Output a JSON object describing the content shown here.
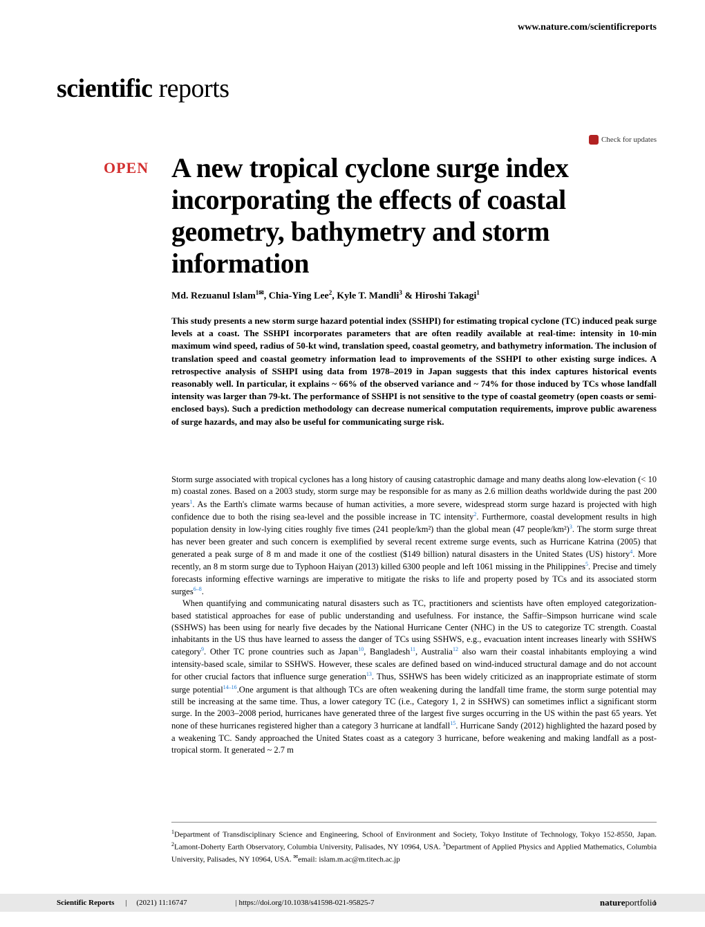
{
  "header": {
    "url": "www.nature.com/scientificreports"
  },
  "journal": {
    "logo_bold": "scientific",
    "logo_light": " reports"
  },
  "check_updates_label": "Check for updates",
  "badge": {
    "open_label": "OPEN"
  },
  "article": {
    "title": "A new tropical cyclone surge index incorporating the effects of coastal geometry, bathymetry and storm information",
    "authors_html": "Md. Rezuanul Islam<sup>1✉</sup>, Chia-Ying Lee<sup>2</sup>, Kyle T. Mandli<sup>3</sup> & Hiroshi Takagi<sup>1</sup>"
  },
  "abstract": {
    "text": "This study presents a new storm surge hazard potential index (SSHPI) for estimating tropical cyclone (TC) induced peak surge levels at a coast. The SSHPI incorporates parameters that are often readily available at real-time: intensity in 10-min maximum wind speed, radius of 50-kt wind, translation speed, coastal geometry, and bathymetry information. The inclusion of translation speed and coastal geometry information lead to improvements of the SSHPI to other existing surge indices. A retrospective analysis of SSHPI using data from 1978–2019 in Japan suggests that this index captures historical events reasonably well. In particular, it explains ~ 66% of the observed variance and ~ 74% for those induced by TCs whose landfall intensity was larger than 79-kt. The performance of SSHPI is not sensitive to the type of coastal geometry (open coasts or semi-enclosed bays). Such a prediction methodology can decrease numerical computation requirements, improve public awareness of surge hazards, and may also be useful for communicating surge risk."
  },
  "body": {
    "para1": "Storm surge associated with tropical cyclones has a long history of causing catastrophic damage and many deaths along low-elevation (< 10 m) coastal zones. Based on a 2003 study, storm surge may be responsible for as many as 2.6 million deaths worldwide during the past 200 years",
    "para1_cont": ". As the Earth's climate warms because of human activities, a more severe, widespread storm surge hazard is projected with high confidence due to both the rising sea-level and the possible increase in TC intensity",
    "para1_cont2": ". Furthermore, coastal development results in high population density in low-lying cities roughly five times (241 people/km²) than the global mean (47 people/km²)",
    "para1_cont3": ". The storm surge threat has never been greater and such concern is exemplified by several recent extreme surge events, such as Hurricane Katrina (2005) that generated a peak surge of 8 m and made it one of the costliest ($149 billion) natural disasters in the United States (US) history",
    "para1_cont4": ". More recently, an 8 m storm surge due to Typhoon Haiyan (2013) killed 6300 people and left 1061 missing in the Philippines",
    "para1_cont5": ". Precise and timely forecasts informing effective warnings are imperative to mitigate the risks to life and property posed by TCs and its associated storm surges",
    "para1_end": ".",
    "para2_start": "When quantifying and communicating natural disasters such as TC, practitioners and scientists have often employed categorization-based statistical approaches for ease of public understanding and usefulness. For instance, the Saffir–Simpson hurricane wind scale (SSHWS) has been using for nearly five decades by the National Hurricane Center (NHC) in the US to categorize TC strength. Coastal inhabitants in the US thus have learned to assess the danger of TCs using SSHWS, e.g., evacuation intent increases linearly with SSHWS category",
    "para2_cont1": ". Other TC prone countries such as Japan",
    "para2_cont2": ", Bangladesh",
    "para2_cont3": ", Australia",
    "para2_cont4": " also warn their coastal inhabitants employing a wind intensity-based scale, similar to SSHWS. However, these scales are defined based on wind-induced structural damage and do not account for other crucial factors that influence surge generation",
    "para2_cont5": ". Thus, SSHWS has been widely criticized as an inappropriate estimate of storm surge potential",
    "para2_cont6": ".One argument is that although TCs are often weakening during the landfall time frame, the storm surge potential may still be increasing at the same time. Thus, a lower category TC (i.e., Category 1, 2 in SSHWS) can sometimes inflict a significant storm surge. In the 2003–2008 period, hurricanes have generated three of the largest five surges occurring in the US within the past 65 years. Yet none of these hurricanes registered higher than a category 3 hurricane at landfall",
    "para2_cont7": ". Hurricane Sandy (2012) highlighted the hazard posed by a weakening TC. Sandy approached the United States coast as a category 3 hurricane, before weakening and making landfall as a post-tropical storm. It generated ~ 2.7 m",
    "refs": {
      "r1": "1",
      "r2": "2",
      "r3": "3",
      "r4": "4",
      "r5": "5",
      "r6_8": "6–8",
      "r9": "9",
      "r10": "10",
      "r11": "11",
      "r12": "12",
      "r13": "13",
      "r14_16": "14–16",
      "r15": "15"
    }
  },
  "affiliations": {
    "text_html": "<sup>1</sup>Department of Transdisciplinary Science and Engineering, School of Environment and Society, Tokyo Institute of Technology, Tokyo 152-8550, Japan. <sup>2</sup>Lamont-Doherty Earth Observatory, Columbia University, Palisades, NY 10964, USA. <sup>3</sup>Department of Applied Physics and Applied Mathematics, Columbia University, Palisades, NY 10964, USA. <sup>✉</sup>email: islam.m.ac@m.titech.ac.jp"
  },
  "footer": {
    "journal": "Scientific Reports",
    "citation": "(2021) 11:16747",
    "doi": "https://doi.org/10.1038/s41598-021-95825-7",
    "portfolio_bold": "nature",
    "portfolio_light": "portfolio",
    "page_number": "1"
  },
  "colors": {
    "open_badge": "#d32f2f",
    "ref_link": "#1976d2",
    "footer_bg": "#e8e8e8",
    "text": "#000000",
    "background": "#ffffff",
    "check_icon": "#b22222"
  },
  "typography": {
    "title_fontsize": 40,
    "authors_fontsize": 14,
    "abstract_fontsize": 13,
    "body_fontsize": 12.5,
    "affiliations_fontsize": 11,
    "footer_fontsize": 11,
    "logo_fontsize": 38
  }
}
